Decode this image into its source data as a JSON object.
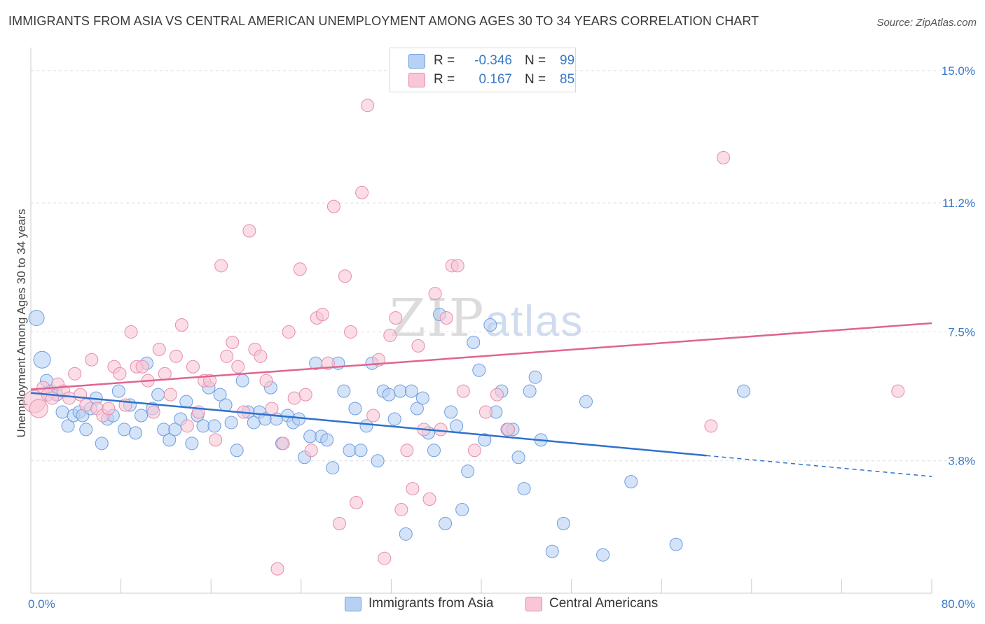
{
  "title": "IMMIGRANTS FROM ASIA VS CENTRAL AMERICAN UNEMPLOYMENT AMONG AGES 30 TO 34 YEARS CORRELATION CHART",
  "source": "Source: ZipAtlas.com",
  "watermark": {
    "zip": "ZIP",
    "atlas": "atlas"
  },
  "stats": [
    {
      "r_label": "R =",
      "r_value": "-0.346",
      "n_label": "N =",
      "n_value": "99",
      "color": "#6d9ee0"
    },
    {
      "r_label": "R =",
      "r_value": "0.167",
      "n_label": "N =",
      "n_value": "85",
      "color": "#e68cab"
    }
  ],
  "colors": {
    "blue_fill": "#b7d0f3",
    "blue_stroke": "#6d9ee0",
    "blue_line": "#2f72cc",
    "pink_fill": "#f8c6d6",
    "pink_stroke": "#e68cab",
    "pink_line": "#e0648f",
    "tick_text": "#3a78c8",
    "grid": "#dedede"
  },
  "chart_data": {
    "type": "scatter",
    "ylabel": "Unemployment Among Ages 30 to 34 years",
    "xlim": [
      0,
      80
    ],
    "ylim": [
      0,
      15.5
    ],
    "x_tick_labels": [
      {
        "value": 0,
        "label": "0.0%"
      },
      {
        "value": 80,
        "label": "80.0%"
      }
    ],
    "y_ticks": [
      {
        "value": 3.8,
        "label": "3.8%"
      },
      {
        "value": 7.5,
        "label": "7.5%"
      },
      {
        "value": 11.2,
        "label": "11.2%"
      },
      {
        "value": 15.0,
        "label": "15.0%"
      }
    ],
    "grid": "horizontal dashed",
    "legend": "bottom-center",
    "series": [
      {
        "name": "Immigrants from Asia",
        "points": [
          [
            0.5,
            7.9
          ],
          [
            1.0,
            6.7
          ],
          [
            1.4,
            6.1
          ],
          [
            1.8,
            5.8
          ],
          [
            2.3,
            5.7
          ],
          [
            2.8,
            5.2
          ],
          [
            3.3,
            4.8
          ],
          [
            3.8,
            5.1
          ],
          [
            4.3,
            5.2
          ],
          [
            4.6,
            5.1
          ],
          [
            4.9,
            4.7
          ],
          [
            5.3,
            5.3
          ],
          [
            5.8,
            5.6
          ],
          [
            6.3,
            4.3
          ],
          [
            6.8,
            5.0
          ],
          [
            7.3,
            5.1
          ],
          [
            7.8,
            5.8
          ],
          [
            8.3,
            4.7
          ],
          [
            8.8,
            5.4
          ],
          [
            9.3,
            4.6
          ],
          [
            9.8,
            5.1
          ],
          [
            10.3,
            6.6
          ],
          [
            10.8,
            5.3
          ],
          [
            11.3,
            5.7
          ],
          [
            11.8,
            4.7
          ],
          [
            12.3,
            4.4
          ],
          [
            12.8,
            4.7
          ],
          [
            13.3,
            5.0
          ],
          [
            13.8,
            5.5
          ],
          [
            14.3,
            4.3
          ],
          [
            14.8,
            5.1
          ],
          [
            15.3,
            4.8
          ],
          [
            15.8,
            5.9
          ],
          [
            16.3,
            4.8
          ],
          [
            16.8,
            5.7
          ],
          [
            17.3,
            5.4
          ],
          [
            17.8,
            4.9
          ],
          [
            18.3,
            4.1
          ],
          [
            18.8,
            6.1
          ],
          [
            19.3,
            5.2
          ],
          [
            19.8,
            4.9
          ],
          [
            20.3,
            5.2
          ],
          [
            20.8,
            5.0
          ],
          [
            21.3,
            5.9
          ],
          [
            21.8,
            5.0
          ],
          [
            22.3,
            4.3
          ],
          [
            22.8,
            5.1
          ],
          [
            23.3,
            4.9
          ],
          [
            23.8,
            5.0
          ],
          [
            24.3,
            3.9
          ],
          [
            24.8,
            4.5
          ],
          [
            25.3,
            6.6
          ],
          [
            25.8,
            4.5
          ],
          [
            26.3,
            4.4
          ],
          [
            26.8,
            3.6
          ],
          [
            27.3,
            6.6
          ],
          [
            27.8,
            5.8
          ],
          [
            28.3,
            4.1
          ],
          [
            28.8,
            5.3
          ],
          [
            29.3,
            4.1
          ],
          [
            29.8,
            4.8
          ],
          [
            30.3,
            6.6
          ],
          [
            30.8,
            3.8
          ],
          [
            31.3,
            5.8
          ],
          [
            31.8,
            5.7
          ],
          [
            32.3,
            5.0
          ],
          [
            32.8,
            5.8
          ],
          [
            33.3,
            1.7
          ],
          [
            33.8,
            5.8
          ],
          [
            34.3,
            5.3
          ],
          [
            34.8,
            5.6
          ],
          [
            35.3,
            4.6
          ],
          [
            35.8,
            4.1
          ],
          [
            36.3,
            8.0
          ],
          [
            36.8,
            2.0
          ],
          [
            37.3,
            5.2
          ],
          [
            37.8,
            4.8
          ],
          [
            38.3,
            2.4
          ],
          [
            38.8,
            3.5
          ],
          [
            39.3,
            7.2
          ],
          [
            39.8,
            6.4
          ],
          [
            40.3,
            4.4
          ],
          [
            40.8,
            7.7
          ],
          [
            41.3,
            5.2
          ],
          [
            41.8,
            5.8
          ],
          [
            42.3,
            4.7
          ],
          [
            42.8,
            4.7
          ],
          [
            43.3,
            3.9
          ],
          [
            43.8,
            3.0
          ],
          [
            44.3,
            5.8
          ],
          [
            44.8,
            6.2
          ],
          [
            45.3,
            4.4
          ],
          [
            46.3,
            1.2
          ],
          [
            47.3,
            2.0
          ],
          [
            49.3,
            5.5
          ],
          [
            50.8,
            1.1
          ],
          [
            53.3,
            3.2
          ],
          [
            57.3,
            1.4
          ],
          [
            63.3,
            5.8
          ]
        ]
      },
      {
        "name": "Central Americans",
        "points": [
          [
            0.3,
            5.5
          ],
          [
            0.7,
            5.3
          ],
          [
            1.1,
            5.9
          ],
          [
            1.5,
            5.7
          ],
          [
            1.9,
            5.6
          ],
          [
            2.4,
            6.0
          ],
          [
            2.9,
            5.8
          ],
          [
            3.4,
            5.6
          ],
          [
            3.9,
            6.3
          ],
          [
            4.4,
            5.7
          ],
          [
            4.9,
            5.4
          ],
          [
            5.4,
            6.7
          ],
          [
            5.9,
            5.3
          ],
          [
            6.4,
            5.1
          ],
          [
            6.9,
            5.3
          ],
          [
            7.4,
            6.5
          ],
          [
            7.9,
            6.3
          ],
          [
            8.4,
            5.4
          ],
          [
            8.9,
            7.5
          ],
          [
            9.4,
            6.5
          ],
          [
            9.9,
            6.5
          ],
          [
            10.4,
            6.1
          ],
          [
            10.9,
            5.2
          ],
          [
            11.4,
            7.0
          ],
          [
            11.9,
            6.3
          ],
          [
            12.4,
            5.7
          ],
          [
            12.9,
            6.8
          ],
          [
            13.4,
            7.7
          ],
          [
            13.9,
            4.8
          ],
          [
            14.4,
            6.5
          ],
          [
            14.9,
            5.2
          ],
          [
            15.4,
            6.1
          ],
          [
            15.9,
            6.1
          ],
          [
            16.4,
            4.4
          ],
          [
            16.9,
            9.4
          ],
          [
            17.4,
            6.8
          ],
          [
            17.9,
            7.2
          ],
          [
            18.4,
            6.5
          ],
          [
            18.9,
            5.2
          ],
          [
            19.4,
            10.4
          ],
          [
            19.9,
            7.0
          ],
          [
            20.4,
            6.8
          ],
          [
            20.9,
            6.1
          ],
          [
            21.4,
            5.3
          ],
          [
            21.9,
            0.7
          ],
          [
            22.4,
            4.3
          ],
          [
            22.9,
            7.5
          ],
          [
            23.4,
            5.6
          ],
          [
            23.9,
            9.3
          ],
          [
            24.4,
            5.7
          ],
          [
            24.9,
            4.1
          ],
          [
            25.4,
            7.9
          ],
          [
            25.9,
            8.0
          ],
          [
            26.4,
            6.6
          ],
          [
            26.9,
            11.1
          ],
          [
            27.4,
            2.0
          ],
          [
            27.9,
            9.1
          ],
          [
            28.4,
            7.5
          ],
          [
            28.9,
            2.6
          ],
          [
            29.4,
            11.5
          ],
          [
            29.9,
            14.0
          ],
          [
            30.4,
            5.1
          ],
          [
            30.9,
            6.7
          ],
          [
            31.4,
            1.0
          ],
          [
            31.9,
            7.4
          ],
          [
            32.4,
            7.9
          ],
          [
            32.9,
            2.4
          ],
          [
            33.4,
            4.1
          ],
          [
            33.9,
            3.0
          ],
          [
            34.4,
            7.1
          ],
          [
            34.9,
            4.7
          ],
          [
            35.4,
            2.7
          ],
          [
            35.9,
            8.6
          ],
          [
            36.4,
            4.7
          ],
          [
            36.9,
            7.9
          ],
          [
            37.4,
            9.4
          ],
          [
            37.9,
            9.4
          ],
          [
            38.4,
            5.8
          ],
          [
            39.4,
            4.1
          ],
          [
            40.4,
            5.2
          ],
          [
            41.4,
            5.7
          ],
          [
            42.4,
            4.7
          ],
          [
            60.4,
            4.8
          ],
          [
            61.5,
            12.5
          ],
          [
            77.0,
            5.8
          ]
        ]
      }
    ],
    "trend_lines": [
      {
        "series": "Immigrants from Asia",
        "x": [
          0,
          80
        ],
        "y": [
          5.75,
          3.35
        ],
        "solid_until_x": 60
      },
      {
        "series": "Central Americans",
        "x": [
          0,
          80
        ],
        "y": [
          5.85,
          7.75
        ]
      }
    ]
  },
  "legend_items": [
    {
      "label": "Immigrants from Asia"
    },
    {
      "label": "Central Americans"
    }
  ]
}
